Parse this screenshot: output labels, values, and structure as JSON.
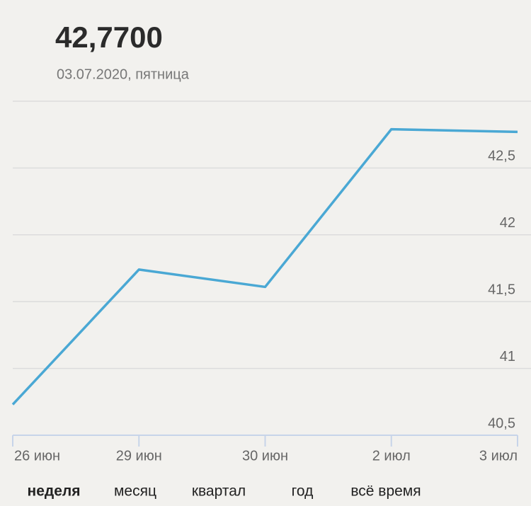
{
  "header": {
    "value": "42,7700",
    "date": "03.07.2020, пятница"
  },
  "chart_data": {
    "type": "line",
    "categories": [
      "26 июн",
      "29 июн",
      "30 июн",
      "2 июл",
      "3 июл"
    ],
    "values": [
      40.73,
      41.74,
      41.61,
      42.79,
      42.77
    ],
    "color": "#4aa8d4",
    "ylim": [
      40.5,
      43
    ],
    "yticks": [
      {
        "value": 40.5,
        "label": "40,5"
      },
      41,
      {
        "value": 41.5,
        "label": "41,5"
      },
      42,
      {
        "value": 42.5,
        "label": "42,5"
      }
    ],
    "grid": true
  },
  "tabs": [
    "неделя",
    "месяц",
    "квартал",
    "год",
    "всё время"
  ],
  "active_tab": 0
}
